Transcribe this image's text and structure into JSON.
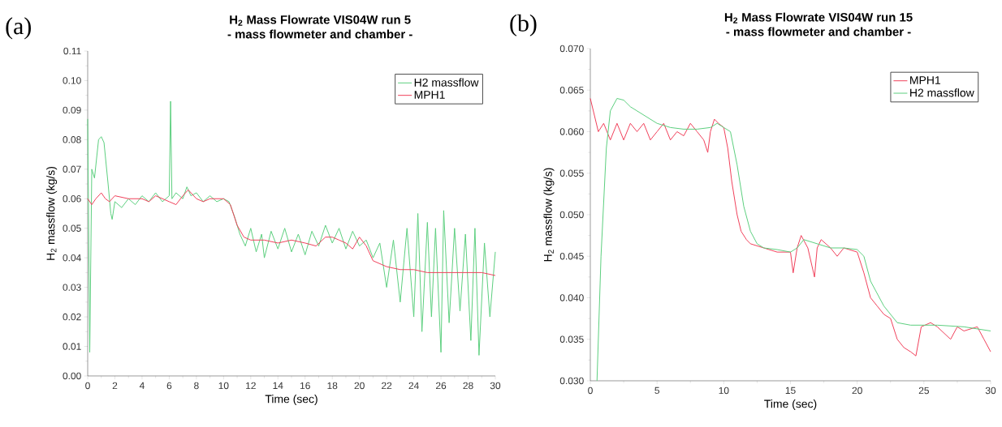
{
  "chart_data": [
    {
      "type": "line",
      "title": "H$_{2}$ Mass Flowrate VIS04W run 5",
      "subtitle": "- mass flowmeter and chamber -",
      "xlabel": "Time (sec)",
      "ylabel": "H$_{2}$ massflow (kg/s)",
      "annotations": [
        "(a)"
      ],
      "xlim": [
        0,
        30
      ],
      "ylim": [
        0,
        0.11
      ],
      "xticks": [
        0,
        2,
        4,
        6,
        8,
        10,
        12,
        14,
        16,
        18,
        20,
        22,
        24,
        26,
        28,
        30
      ],
      "yticks": [
        {
          "value": 0,
          "label": "0.00"
        },
        {
          "value": 0.01,
          "label": "0.01"
        },
        {
          "value": 0.02,
          "label": "0.02"
        },
        {
          "value": 0.03,
          "label": "0.03"
        },
        {
          "value": 0.04,
          "label": "0.04"
        },
        {
          "value": 0.05,
          "label": "0.05"
        },
        {
          "value": 0.06,
          "label": "0.06"
        },
        {
          "value": 0.07,
          "label": "0.07"
        },
        {
          "value": 0.08,
          "label": "0.08"
        },
        {
          "value": 0.09,
          "label": "0.09"
        },
        {
          "value": 0.1,
          "label": "0.10"
        },
        {
          "value": 0.11,
          "label": "0.11"
        }
      ],
      "legend": "top right",
      "grid": false,
      "series": [
        {
          "name": "H2 massflow",
          "color": "#5ccf7e",
          "x": [
            0,
            0.15,
            0.3,
            0.5,
            0.8,
            1.0,
            1.2,
            1.5,
            1.7,
            1.8,
            2,
            2.5,
            3,
            3.5,
            4,
            4.5,
            5,
            5.5,
            6,
            6.1,
            6.2,
            6.5,
            7,
            7.3,
            7.6,
            8,
            8.5,
            9,
            9.5,
            10,
            10.4,
            10.8,
            11.2,
            11.6,
            12,
            12.4,
            12.8,
            13,
            13.5,
            14,
            14.5,
            15,
            15.5,
            16,
            16.5,
            17,
            17.5,
            18,
            18.5,
            19,
            19.5,
            20,
            20.5,
            21,
            21.5,
            22,
            22.5,
            23,
            23.5,
            24,
            24.3,
            24.6,
            25,
            25.3,
            25.6,
            26,
            26.2,
            26.6,
            27,
            27.4,
            27.8,
            28.2,
            28.5,
            28.8,
            29.2,
            29.6,
            30
          ],
          "values": [
            0.087,
            0.008,
            0.07,
            0.067,
            0.08,
            0.081,
            0.079,
            0.065,
            0.055,
            0.053,
            0.059,
            0.057,
            0.06,
            0.058,
            0.061,
            0.059,
            0.062,
            0.059,
            0.061,
            0.093,
            0.06,
            0.062,
            0.06,
            0.064,
            0.061,
            0.062,
            0.059,
            0.061,
            0.059,
            0.06,
            0.059,
            0.054,
            0.048,
            0.044,
            0.05,
            0.042,
            0.048,
            0.04,
            0.049,
            0.043,
            0.05,
            0.042,
            0.048,
            0.041,
            0.049,
            0.044,
            0.051,
            0.045,
            0.05,
            0.043,
            0.049,
            0.044,
            0.046,
            0.04,
            0.045,
            0.03,
            0.046,
            0.025,
            0.05,
            0.02,
            0.055,
            0.015,
            0.052,
            0.02,
            0.05,
            0.008,
            0.056,
            0.018,
            0.05,
            0.022,
            0.048,
            0.012,
            0.05,
            0.007,
            0.045,
            0.02,
            0.042
          ]
        },
        {
          "name": "MPH1",
          "color": "#f0405a",
          "x": [
            0,
            0.3,
            0.6,
            1,
            1.3,
            1.6,
            2,
            3,
            4,
            4.5,
            5,
            5.5,
            6,
            6.5,
            7,
            7.4,
            8,
            8.5,
            9,
            10,
            10.5,
            11,
            11.5,
            12,
            13,
            14,
            15,
            16,
            16.8,
            17.5,
            18,
            18.5,
            19,
            19.5,
            20,
            20.5,
            21,
            22,
            23,
            24,
            25,
            26,
            27,
            28,
            29,
            30
          ],
          "values": [
            0.06,
            0.058,
            0.06,
            0.062,
            0.06,
            0.059,
            0.061,
            0.06,
            0.06,
            0.059,
            0.061,
            0.06,
            0.059,
            0.058,
            0.061,
            0.063,
            0.06,
            0.059,
            0.06,
            0.06,
            0.058,
            0.051,
            0.047,
            0.046,
            0.046,
            0.045,
            0.046,
            0.045,
            0.044,
            0.047,
            0.047,
            0.046,
            0.045,
            0.043,
            0.047,
            0.044,
            0.039,
            0.037,
            0.036,
            0.036,
            0.035,
            0.035,
            0.035,
            0.035,
            0.035,
            0.034
          ]
        }
      ]
    },
    {
      "type": "line",
      "title": "H$_{2}$ Mass Flowrate VIS04W run 15",
      "subtitle": "- mass flowmeter and chamber -",
      "xlabel": "Time (sec)",
      "ylabel": "H$_{2}$ massflow (kg/s)",
      "annotations": [
        "(b)"
      ],
      "xlim": [
        0,
        30
      ],
      "ylim": [
        0.03,
        0.07
      ],
      "xticks": [
        0,
        5,
        10,
        15,
        20,
        25,
        30
      ],
      "yticks": [
        {
          "value": 0.03,
          "label": "0.030"
        },
        {
          "value": 0.035,
          "label": "0.035"
        },
        {
          "value": 0.04,
          "label": "0.040"
        },
        {
          "value": 0.045,
          "label": "0.045"
        },
        {
          "value": 0.05,
          "label": "0.050"
        },
        {
          "value": 0.055,
          "label": "0.055"
        },
        {
          "value": 0.06,
          "label": "0.060"
        },
        {
          "value": 0.065,
          "label": "0.065"
        },
        {
          "value": 0.07,
          "label": "0.070"
        }
      ],
      "legend": "top right",
      "grid": false,
      "series": [
        {
          "name": "MPH1",
          "color": "#f0405a",
          "x": [
            0,
            0.3,
            0.6,
            1,
            1.5,
            2,
            2.5,
            3,
            3.5,
            4,
            4.5,
            5,
            5.5,
            6,
            6.5,
            7,
            7.5,
            8,
            8.5,
            8.8,
            9,
            9.3,
            9.6,
            10,
            10.3,
            10.6,
            11,
            11.3,
            11.7,
            12,
            13,
            14,
            15,
            15.2,
            15.5,
            15.8,
            16.3,
            16.8,
            17,
            17.3,
            18,
            18.5,
            19,
            20,
            20.5,
            21,
            21.5,
            22,
            22.5,
            23,
            23.5,
            24,
            24.4,
            24.8,
            25.5,
            26,
            27,
            27.5,
            28,
            29,
            29.5,
            30
          ],
          "values": [
            0.064,
            0.062,
            0.06,
            0.061,
            0.059,
            0.061,
            0.059,
            0.061,
            0.06,
            0.061,
            0.059,
            0.06,
            0.061,
            0.059,
            0.06,
            0.0595,
            0.061,
            0.06,
            0.059,
            0.0575,
            0.06,
            0.0615,
            0.061,
            0.0605,
            0.058,
            0.054,
            0.05,
            0.048,
            0.047,
            0.0465,
            0.046,
            0.0455,
            0.0455,
            0.043,
            0.046,
            0.0475,
            0.046,
            0.0425,
            0.046,
            0.047,
            0.046,
            0.045,
            0.046,
            0.0455,
            0.043,
            0.04,
            0.039,
            0.038,
            0.0375,
            0.035,
            0.034,
            0.0335,
            0.033,
            0.0365,
            0.037,
            0.0365,
            0.035,
            0.0365,
            0.036,
            0.0365,
            0.035,
            0.0335
          ]
        },
        {
          "name": "H2 massflow",
          "color": "#5ccf7e",
          "x": [
            0.5,
            0.8,
            1.2,
            1.5,
            2,
            2.5,
            3,
            4,
            5,
            6,
            7,
            8,
            9,
            9.5,
            10,
            10.5,
            11,
            11.5,
            12,
            12.5,
            13,
            14,
            15,
            15.5,
            16,
            17,
            18,
            19,
            20,
            20.5,
            21,
            22,
            23,
            24,
            25,
            26,
            28,
            30
          ],
          "values": [
            0.03,
            0.045,
            0.058,
            0.0625,
            0.064,
            0.0638,
            0.063,
            0.062,
            0.061,
            0.0605,
            0.0603,
            0.0603,
            0.0605,
            0.061,
            0.0605,
            0.06,
            0.056,
            0.051,
            0.048,
            0.0465,
            0.046,
            0.0458,
            0.0455,
            0.046,
            0.047,
            0.0465,
            0.046,
            0.046,
            0.0458,
            0.045,
            0.042,
            0.039,
            0.037,
            0.0367,
            0.0367,
            0.0367,
            0.0365,
            0.036
          ]
        }
      ]
    }
  ]
}
